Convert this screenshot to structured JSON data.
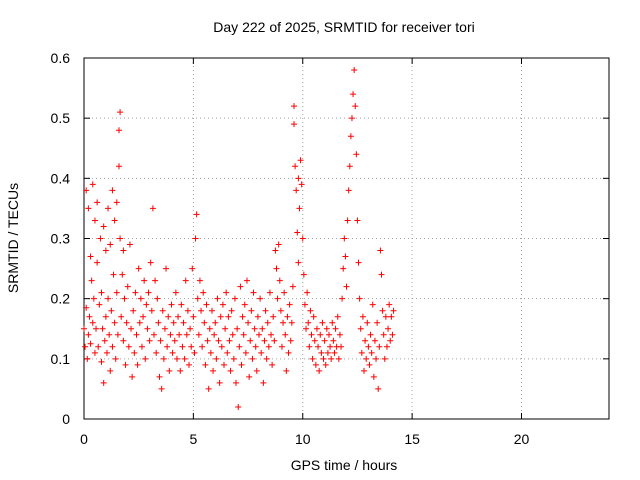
{
  "chart_data": {
    "type": "scatter",
    "title": "Day 222 of 2025, SRMTID for receiver tori",
    "xlabel": "GPS time / hours",
    "ylabel": "SRMTID / TECUs",
    "xlim": [
      0,
      24
    ],
    "ylim": [
      0,
      0.6
    ],
    "xticks": [
      0,
      5,
      10,
      15,
      20
    ],
    "yticks": [
      0,
      0.1,
      0.2,
      0.3,
      0.4,
      0.5,
      0.6
    ],
    "xtick_labels": [
      "0",
      "5",
      "10",
      "15",
      "20"
    ],
    "ytick_labels": [
      "0",
      "0.1",
      "0.2",
      "0.3",
      "0.4",
      "0.5",
      "0.6"
    ],
    "grid": true,
    "marker": "+",
    "color": "#ff0000",
    "series": [
      {
        "name": "SRMTID",
        "points": [
          [
            0.0,
            0.15
          ],
          [
            0.05,
            0.12
          ],
          [
            0.1,
            0.185
          ],
          [
            0.1,
            0.38
          ],
          [
            0.15,
            0.1
          ],
          [
            0.2,
            0.14
          ],
          [
            0.2,
            0.35
          ],
          [
            0.25,
            0.17
          ],
          [
            0.3,
            0.125
          ],
          [
            0.3,
            0.27
          ],
          [
            0.35,
            0.23
          ],
          [
            0.4,
            0.16
          ],
          [
            0.4,
            0.39
          ],
          [
            0.45,
            0.2
          ],
          [
            0.5,
            0.11
          ],
          [
            0.5,
            0.33
          ],
          [
            0.55,
            0.15
          ],
          [
            0.6,
            0.26
          ],
          [
            0.6,
            0.36
          ],
          [
            0.65,
            0.12
          ],
          [
            0.7,
            0.19
          ],
          [
            0.75,
            0.3
          ],
          [
            0.8,
            0.095
          ],
          [
            0.8,
            0.21
          ],
          [
            0.85,
            0.15
          ],
          [
            0.9,
            0.06
          ],
          [
            0.9,
            0.32
          ],
          [
            0.95,
            0.13
          ],
          [
            1.0,
            0.28
          ],
          [
            1.0,
            0.17
          ],
          [
            1.05,
            0.11
          ],
          [
            1.1,
            0.35
          ],
          [
            1.1,
            0.2
          ],
          [
            1.15,
            0.14
          ],
          [
            1.2,
            0.08
          ],
          [
            1.2,
            0.29
          ],
          [
            1.25,
            0.18
          ],
          [
            1.3,
            0.38
          ],
          [
            1.3,
            0.12
          ],
          [
            1.35,
            0.24
          ],
          [
            1.4,
            0.33
          ],
          [
            1.4,
            0.16
          ],
          [
            1.45,
            0.1
          ],
          [
            1.5,
            0.36
          ],
          [
            1.5,
            0.21
          ],
          [
            1.55,
            0.14
          ],
          [
            1.6,
            0.42
          ],
          [
            1.6,
            0.48
          ],
          [
            1.65,
            0.51
          ],
          [
            1.65,
            0.3
          ],
          [
            1.7,
            0.17
          ],
          [
            1.75,
            0.24
          ],
          [
            1.8,
            0.13
          ],
          [
            1.8,
            0.28
          ],
          [
            1.85,
            0.2
          ],
          [
            1.9,
            0.09
          ],
          [
            1.95,
            0.16
          ],
          [
            2.0,
            0.22
          ],
          [
            2.05,
            0.12
          ],
          [
            2.1,
            0.29
          ],
          [
            2.15,
            0.15
          ],
          [
            2.2,
            0.07
          ],
          [
            2.25,
            0.18
          ],
          [
            2.3,
            0.11
          ],
          [
            2.35,
            0.21
          ],
          [
            2.4,
            0.14
          ],
          [
            2.45,
            0.09
          ],
          [
            2.5,
            0.25
          ],
          [
            2.55,
            0.16
          ],
          [
            2.6,
            0.2
          ],
          [
            2.65,
            0.12
          ],
          [
            2.7,
            0.17
          ],
          [
            2.75,
            0.23
          ],
          [
            2.8,
            0.1
          ],
          [
            2.85,
            0.19
          ],
          [
            2.9,
            0.15
          ],
          [
            2.95,
            0.21
          ],
          [
            3.0,
            0.13
          ],
          [
            3.05,
            0.26
          ],
          [
            3.1,
            0.18
          ],
          [
            3.15,
            0.35
          ],
          [
            3.2,
            0.14
          ],
          [
            3.25,
            0.23
          ],
          [
            3.3,
            0.11
          ],
          [
            3.35,
            0.2
          ],
          [
            3.4,
            0.16
          ],
          [
            3.45,
            0.07
          ],
          [
            3.5,
            0.13
          ],
          [
            3.55,
            0.05
          ],
          [
            3.6,
            0.18
          ],
          [
            3.65,
            0.1
          ],
          [
            3.7,
            0.15
          ],
          [
            3.75,
            0.25
          ],
          [
            3.8,
            0.12
          ],
          [
            3.85,
            0.17
          ],
          [
            3.9,
            0.08
          ],
          [
            3.95,
            0.14
          ],
          [
            4.0,
            0.19
          ],
          [
            4.05,
            0.11
          ],
          [
            4.1,
            0.16
          ],
          [
            4.15,
            0.13
          ],
          [
            4.2,
            0.21
          ],
          [
            4.25,
            0.1
          ],
          [
            4.3,
            0.17
          ],
          [
            4.35,
            0.14
          ],
          [
            4.4,
            0.08
          ],
          [
            4.45,
            0.19
          ],
          [
            4.5,
            0.12
          ],
          [
            4.55,
            0.16
          ],
          [
            4.6,
            0.1
          ],
          [
            4.65,
            0.23
          ],
          [
            4.7,
            0.14
          ],
          [
            4.75,
            0.18
          ],
          [
            4.8,
            0.09
          ],
          [
            4.85,
            0.15
          ],
          [
            4.9,
            0.12
          ],
          [
            4.95,
            0.25
          ],
          [
            5.0,
            0.17
          ],
          [
            5.05,
            0.11
          ],
          [
            5.1,
            0.3
          ],
          [
            5.15,
            0.34
          ],
          [
            5.2,
            0.2
          ],
          [
            5.25,
            0.14
          ],
          [
            5.3,
            0.23
          ],
          [
            5.35,
            0.18
          ],
          [
            5.4,
            0.12
          ],
          [
            5.45,
            0.21
          ],
          [
            5.5,
            0.16
          ],
          [
            5.55,
            0.09
          ],
          [
            5.6,
            0.19
          ],
          [
            5.65,
            0.13
          ],
          [
            5.7,
            0.05
          ],
          [
            5.75,
            0.15
          ],
          [
            5.8,
            0.11
          ],
          [
            5.85,
            0.18
          ],
          [
            5.9,
            0.08
          ],
          [
            5.95,
            0.14
          ],
          [
            6.0,
            0.16
          ],
          [
            6.05,
            0.1
          ],
          [
            6.1,
            0.2
          ],
          [
            6.15,
            0.13
          ],
          [
            6.2,
            0.06
          ],
          [
            6.25,
            0.17
          ],
          [
            6.3,
            0.12
          ],
          [
            6.35,
            0.19
          ],
          [
            6.4,
            0.09
          ],
          [
            6.45,
            0.15
          ],
          [
            6.5,
            0.21
          ],
          [
            6.55,
            0.11
          ],
          [
            6.6,
            0.17
          ],
          [
            6.65,
            0.13
          ],
          [
            6.7,
            0.08
          ],
          [
            6.75,
            0.18
          ],
          [
            6.8,
            0.14
          ],
          [
            6.85,
            0.1
          ],
          [
            6.9,
            0.2
          ],
          [
            6.95,
            0.06
          ],
          [
            7.0,
            0.15
          ],
          [
            7.05,
            0.02
          ],
          [
            7.1,
            0.12
          ],
          [
            7.15,
            0.22
          ],
          [
            7.2,
            0.09
          ],
          [
            7.25,
            0.17
          ],
          [
            7.3,
            0.14
          ],
          [
            7.35,
            0.19
          ],
          [
            7.4,
            0.11
          ],
          [
            7.45,
            0.23
          ],
          [
            7.5,
            0.16
          ],
          [
            7.55,
            0.07
          ],
          [
            7.6,
            0.13
          ],
          [
            7.65,
            0.18
          ],
          [
            7.7,
            0.1
          ],
          [
            7.75,
            0.21
          ],
          [
            7.8,
            0.15
          ],
          [
            7.85,
            0.12
          ],
          [
            7.9,
            0.08
          ],
          [
            7.95,
            0.17
          ],
          [
            8.0,
            0.14
          ],
          [
            8.05,
            0.2
          ],
          [
            8.1,
            0.11
          ],
          [
            8.15,
            0.15
          ],
          [
            8.2,
            0.06
          ],
          [
            8.25,
            0.13
          ],
          [
            8.3,
            0.18
          ],
          [
            8.35,
            0.1
          ],
          [
            8.4,
            0.16
          ],
          [
            8.45,
            0.12
          ],
          [
            8.5,
            0.21
          ],
          [
            8.55,
            0.14
          ],
          [
            8.6,
            0.09
          ],
          [
            8.65,
            0.17
          ],
          [
            8.7,
            0.13
          ],
          [
            8.75,
            0.28
          ],
          [
            8.8,
            0.25
          ],
          [
            8.85,
            0.2
          ],
          [
            8.9,
            0.29
          ],
          [
            8.95,
            0.23
          ],
          [
            9.0,
            0.18
          ],
          [
            9.05,
            0.12
          ],
          [
            9.1,
            0.16
          ],
          [
            9.15,
            0.21
          ],
          [
            9.2,
            0.14
          ],
          [
            9.25,
            0.08
          ],
          [
            9.3,
            0.17
          ],
          [
            9.35,
            0.11
          ],
          [
            9.4,
            0.19
          ],
          [
            9.45,
            0.13
          ],
          [
            9.5,
            0.16
          ],
          [
            9.55,
            0.22
          ],
          [
            9.6,
            0.49
          ],
          [
            9.6,
            0.52
          ],
          [
            9.65,
            0.42
          ],
          [
            9.7,
            0.38
          ],
          [
            9.75,
            0.31
          ],
          [
            9.8,
            0.26
          ],
          [
            9.8,
            0.4
          ],
          [
            9.85,
            0.35
          ],
          [
            9.9,
            0.43
          ],
          [
            9.95,
            0.39
          ],
          [
            10.0,
            0.3
          ],
          [
            10.05,
            0.24
          ],
          [
            10.1,
            0.19
          ],
          [
            10.15,
            0.15
          ],
          [
            10.2,
            0.21
          ],
          [
            10.25,
            0.16
          ],
          [
            10.3,
            0.12
          ],
          [
            10.35,
            0.18
          ],
          [
            10.4,
            0.14
          ],
          [
            10.45,
            0.1
          ],
          [
            10.5,
            0.17
          ],
          [
            10.55,
            0.13
          ],
          [
            10.6,
            0.09
          ],
          [
            10.65,
            0.15
          ],
          [
            10.7,
            0.12
          ],
          [
            10.75,
            0.08
          ],
          [
            10.8,
            0.14
          ],
          [
            10.85,
            0.11
          ],
          [
            10.9,
            0.16
          ],
          [
            10.95,
            0.1
          ],
          [
            11.0,
            0.13
          ],
          [
            11.05,
            0.09
          ],
          [
            11.1,
            0.15
          ],
          [
            11.15,
            0.11
          ],
          [
            11.2,
            0.14
          ],
          [
            11.25,
            0.12
          ],
          [
            11.3,
            0.1
          ],
          [
            11.35,
            0.16
          ],
          [
            11.4,
            0.13
          ],
          [
            11.45,
            0.11
          ],
          [
            11.5,
            0.15
          ],
          [
            11.55,
            0.12
          ],
          [
            11.6,
            0.17
          ],
          [
            11.65,
            0.1
          ],
          [
            11.7,
            0.14
          ],
          [
            11.75,
            0.12
          ],
          [
            11.8,
            0.2
          ],
          [
            11.85,
            0.25
          ],
          [
            11.9,
            0.3
          ],
          [
            11.95,
            0.27
          ],
          [
            12.0,
            0.22
          ],
          [
            12.05,
            0.33
          ],
          [
            12.1,
            0.38
          ],
          [
            12.15,
            0.42
          ],
          [
            12.2,
            0.47
          ],
          [
            12.25,
            0.5
          ],
          [
            12.3,
            0.54
          ],
          [
            12.35,
            0.58
          ],
          [
            12.4,
            0.52
          ],
          [
            12.45,
            0.44
          ],
          [
            12.5,
            0.33
          ],
          [
            12.55,
            0.26
          ],
          [
            12.6,
            0.2
          ],
          [
            12.65,
            0.15
          ],
          [
            12.7,
            0.11
          ],
          [
            12.75,
            0.17
          ],
          [
            12.8,
            0.08
          ],
          [
            12.85,
            0.13
          ],
          [
            12.9,
            0.1
          ],
          [
            12.95,
            0.16
          ],
          [
            13.0,
            0.12
          ],
          [
            13.05,
            0.09
          ],
          [
            13.1,
            0.14
          ],
          [
            13.15,
            0.11
          ],
          [
            13.2,
            0.19
          ],
          [
            13.25,
            0.07
          ],
          [
            13.3,
            0.13
          ],
          [
            13.35,
            0.1
          ],
          [
            13.4,
            0.16
          ],
          [
            13.45,
            0.05
          ],
          [
            13.5,
            0.12
          ],
          [
            13.55,
            0.28
          ],
          [
            13.6,
            0.24
          ],
          [
            13.65,
            0.18
          ],
          [
            13.7,
            0.14
          ],
          [
            13.75,
            0.1
          ],
          [
            13.8,
            0.17
          ],
          [
            13.85,
            0.12
          ],
          [
            13.9,
            0.15
          ],
          [
            13.95,
            0.19
          ],
          [
            14.0,
            0.13
          ],
          [
            14.05,
            0.17
          ],
          [
            14.1,
            0.14
          ],
          [
            14.15,
            0.18
          ]
        ]
      }
    ]
  }
}
